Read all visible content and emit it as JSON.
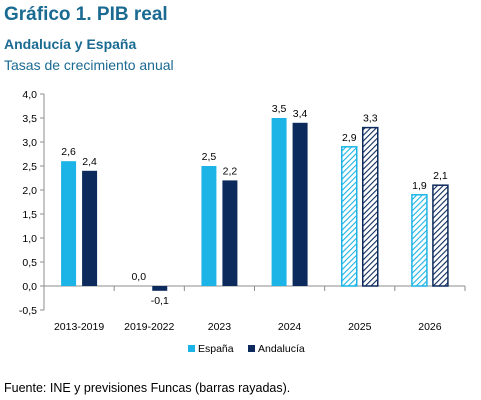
{
  "header": {
    "title": "Gráfico 1. PIB real",
    "subtitle": "Andalucía y España",
    "subsubtitle": "Tasas de crecimiento anual"
  },
  "source": "Fuente: INE y previsiones Funcas (barras rayadas).",
  "colors": {
    "espana": "#1CB4E6",
    "andalucia": "#0D2A5C",
    "axis": "#8c8c8c",
    "text": "#000000"
  },
  "chart_data": {
    "type": "bar",
    "categories": [
      "2013-2019",
      "2019-2022",
      "2023",
      "2024",
      "2025",
      "2026"
    ],
    "series": [
      {
        "name": "España",
        "values": [
          2.6,
          0.0,
          2.5,
          3.5,
          2.9,
          1.9
        ],
        "labels": [
          "2,6",
          "0,0",
          "2,5",
          "3,5",
          "2,9",
          "1,9"
        ]
      },
      {
        "name": "Andalucía",
        "values": [
          2.4,
          -0.1,
          2.2,
          3.4,
          3.3,
          2.1
        ],
        "labels": [
          "2,4",
          "-0,1",
          "2,2",
          "3,4",
          "3,3",
          "2,1"
        ]
      }
    ],
    "hatched_categories": [
      "2025",
      "2026"
    ],
    "ylim": [
      -0.5,
      4.0
    ],
    "yticks": [
      "-0,5",
      "0,0",
      "0,5",
      "1,0",
      "1,5",
      "2,0",
      "2,5",
      "3,0",
      "3,5",
      "4,0"
    ],
    "grid": false,
    "legend_position": "bottom-center"
  }
}
